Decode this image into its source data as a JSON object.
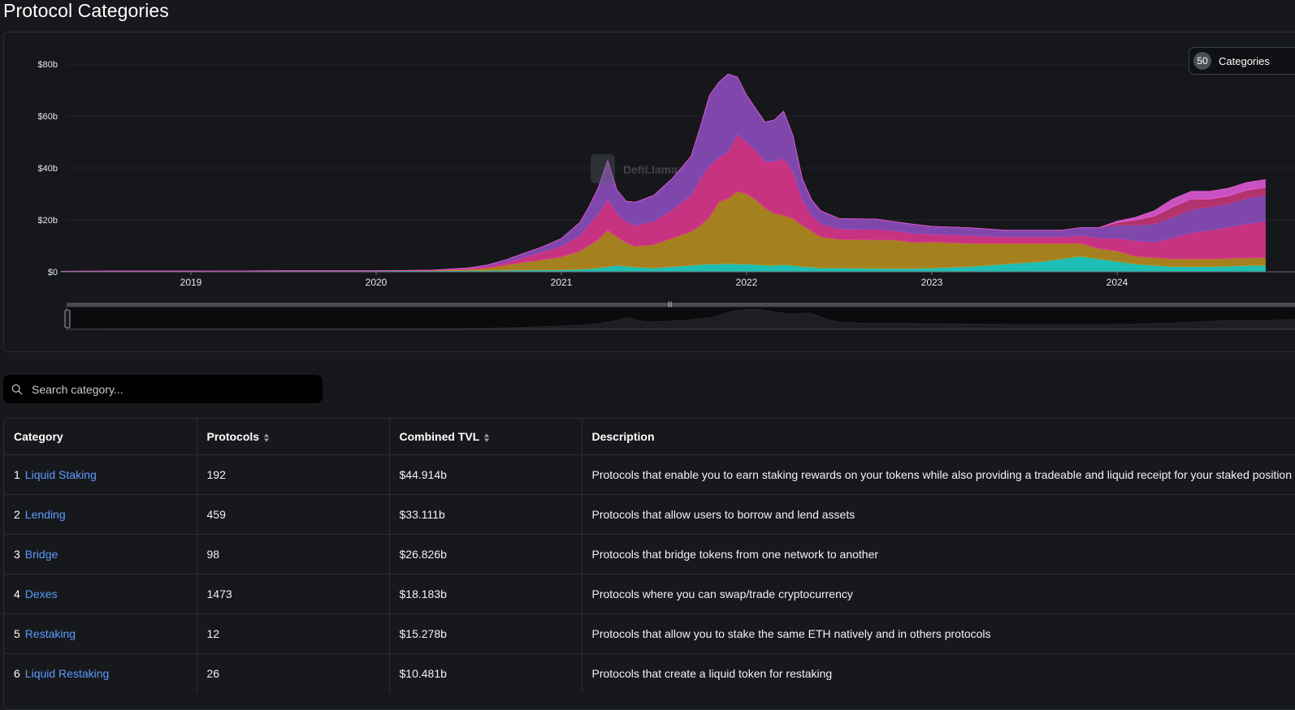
{
  "page": {
    "title": "Protocol Categories"
  },
  "colors": {
    "background": "#17181c",
    "link": "#5b9cff",
    "accent_purple": "#8e4fc0",
    "accent_pink": "#e0388f",
    "accent_gold": "#b98f20",
    "accent_cyan": "#1fd6c8"
  },
  "chart_control": {
    "count": "50",
    "label": "Categories"
  },
  "watermark": "DefiLlama",
  "chart_data": {
    "type": "area",
    "title": "",
    "xlabel": "",
    "ylabel": "",
    "stacked": true,
    "x_ticks": [
      "2019",
      "2020",
      "2021",
      "2022",
      "2023",
      "2024"
    ],
    "y_ticks": [
      "$80b",
      "$60b",
      "$40b",
      "$20b",
      "$0"
    ],
    "ylim": [
      0,
      80
    ],
    "y_unit": "$b",
    "grid": true,
    "x": [
      2018.3,
      2018.75,
      2019.0,
      2019.5,
      2020.0,
      2020.3,
      2020.5,
      2020.6,
      2020.7,
      2020.8,
      2020.9,
      2021.0,
      2021.1,
      2021.15,
      2021.2,
      2021.25,
      2021.3,
      2021.35,
      2021.4,
      2021.5,
      2021.6,
      2021.7,
      2021.75,
      2021.8,
      2021.85,
      2021.9,
      2021.95,
      2022.0,
      2022.05,
      2022.1,
      2022.15,
      2022.2,
      2022.25,
      2022.3,
      2022.35,
      2022.4,
      2022.5,
      2022.6,
      2022.7,
      2022.8,
      2022.9,
      2023.0,
      2023.2,
      2023.4,
      2023.6,
      2023.7,
      2023.8,
      2023.9,
      2024.0,
      2024.1,
      2024.2,
      2024.3,
      2024.4,
      2024.5,
      2024.6,
      2024.7,
      2024.8
    ],
    "series": [
      {
        "color": "#1fd6c8",
        "values": [
          0.2,
          0.3,
          0.3,
          0.4,
          0.4,
          0.4,
          0.5,
          0.5,
          0.6,
          0.7,
          0.7,
          0.8,
          1,
          1.2,
          1.5,
          2,
          2.5,
          2.2,
          1.8,
          1.5,
          2,
          2.5,
          2.8,
          3,
          3,
          3.2,
          3,
          3,
          2.8,
          2.6,
          2.5,
          2.8,
          2.5,
          2,
          1.8,
          1.5,
          1.5,
          1.4,
          1.3,
          1.3,
          1.3,
          1.5,
          2,
          3,
          4,
          5,
          6,
          5,
          4,
          3,
          2.5,
          2,
          2,
          2,
          2.2,
          2.4,
          2.5
        ]
      },
      {
        "color": "#b98f20",
        "values": [
          0,
          0,
          0,
          0,
          0,
          0.2,
          0.5,
          1,
          2,
          3,
          4,
          5,
          7,
          9,
          11,
          14,
          11,
          9,
          8,
          9,
          11,
          13,
          15,
          18,
          24,
          25,
          28,
          27,
          25,
          22,
          20,
          19,
          18,
          16,
          14,
          12,
          11,
          11,
          11,
          11,
          10,
          10,
          9,
          8,
          7,
          6,
          5,
          4,
          4,
          3,
          3,
          3,
          3,
          3,
          3,
          3,
          3
        ]
      },
      {
        "color": "#e0388f",
        "values": [
          0,
          0,
          0,
          0,
          0,
          0,
          0.3,
          0.6,
          1,
          2,
          3,
          4,
          6,
          8,
          10,
          12,
          9,
          8,
          8,
          9,
          11,
          14,
          18,
          20,
          17,
          18,
          22,
          20,
          19,
          18,
          20,
          22,
          18,
          10,
          6,
          5,
          4,
          4,
          4,
          3.5,
          3.5,
          3,
          3,
          2.5,
          2.5,
          2.5,
          3,
          4,
          5,
          6,
          6,
          8,
          10,
          11,
          12,
          13,
          14
        ]
      },
      {
        "color": "#8e4fc0",
        "values": [
          0,
          0,
          0,
          0,
          0,
          0,
          0.2,
          0.5,
          1,
          1.5,
          2,
          3,
          5,
          7,
          10,
          15,
          9,
          8,
          9,
          10,
          12,
          15,
          20,
          27,
          29,
          30,
          22,
          18,
          16,
          15,
          16,
          18,
          14,
          8,
          6,
          5,
          4,
          4,
          4,
          3.5,
          3.5,
          3,
          3,
          2.5,
          2.5,
          2.5,
          3,
          4,
          5,
          6,
          7,
          8,
          9,
          9,
          9,
          10,
          10
        ]
      },
      {
        "color": "#c83779",
        "values": [
          0,
          0,
          0,
          0,
          0,
          0,
          0,
          0,
          0,
          0,
          0,
          0,
          0,
          0,
          0,
          0,
          0,
          0,
          0,
          0,
          0,
          0,
          0,
          0,
          0,
          0,
          0,
          0,
          0,
          0,
          0,
          0,
          0,
          0,
          0,
          0,
          0,
          0,
          0,
          0,
          0,
          0,
          0,
          0,
          0,
          0,
          0,
          0,
          1,
          2,
          3,
          4,
          4,
          3,
          3,
          3,
          3
        ]
      },
      {
        "color": "#e25bd8",
        "values": [
          0,
          0,
          0,
          0,
          0,
          0,
          0,
          0,
          0,
          0,
          0,
          0,
          0,
          0,
          0,
          0,
          0,
          0,
          0,
          0,
          0,
          0,
          0,
          0,
          0,
          0,
          0,
          0,
          0,
          0,
          0,
          0,
          0,
          0,
          0,
          0,
          0,
          0,
          0,
          0,
          0,
          0,
          0,
          0,
          0,
          0,
          0,
          0,
          0.5,
          1,
          2,
          3,
          3,
          3,
          3,
          3,
          3
        ]
      }
    ]
  },
  "search": {
    "placeholder": "Search category..."
  },
  "table": {
    "headers": [
      "Category",
      "Protocols",
      "Combined TVL",
      "Description"
    ],
    "rows": [
      {
        "num": "1",
        "category": "Liquid Staking",
        "protocols": "192",
        "tvl": "$44.914b",
        "description": "Protocols that enable you to earn staking rewards on your tokens while also providing a tradeable and liquid receipt for your staked position"
      },
      {
        "num": "2",
        "category": "Lending",
        "protocols": "459",
        "tvl": "$33.111b",
        "description": "Protocols that allow users to borrow and lend assets"
      },
      {
        "num": "3",
        "category": "Bridge",
        "protocols": "98",
        "tvl": "$26.826b",
        "description": "Protocols that bridge tokens from one network to another"
      },
      {
        "num": "4",
        "category": "Dexes",
        "protocols": "1473",
        "tvl": "$18.183b",
        "description": "Protocols where you can swap/trade cryptocurrency"
      },
      {
        "num": "5",
        "category": "Restaking",
        "protocols": "12",
        "tvl": "$15.278b",
        "description": "Protocols that allow you to stake the same ETH natively and in others protocols"
      },
      {
        "num": "6",
        "category": "Liquid Restaking",
        "protocols": "26",
        "tvl": "$10.481b",
        "description": "Protocols that create a liquid token for restaking"
      }
    ]
  }
}
